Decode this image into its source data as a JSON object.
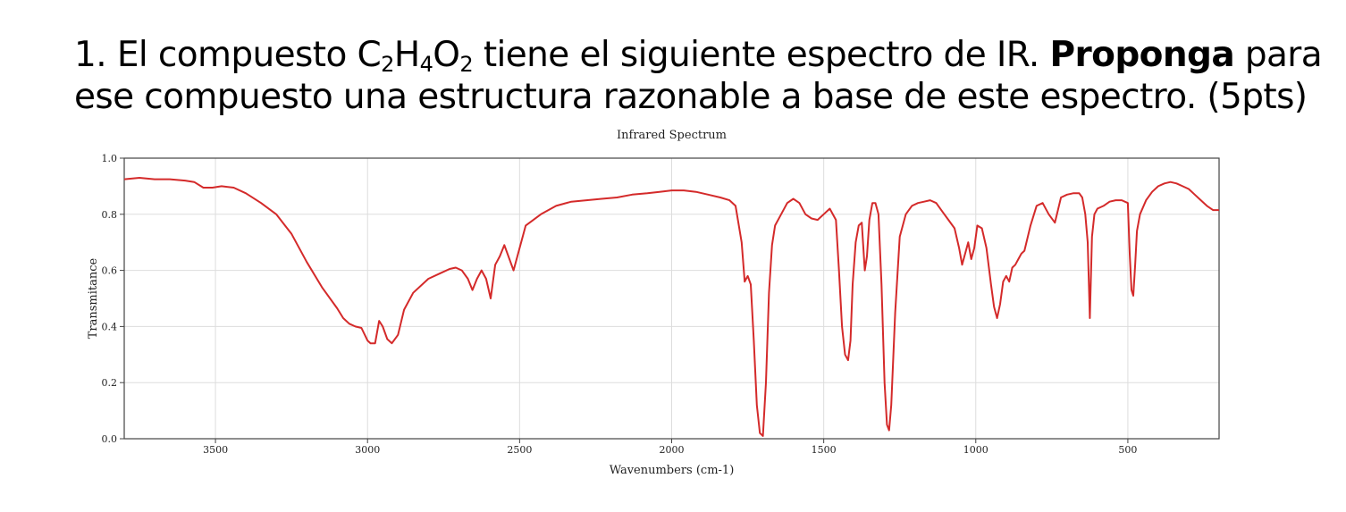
{
  "question": {
    "number": "1.",
    "line1_pre": " El compuesto C",
    "sub1": "2",
    "mid1": "H",
    "sub2": "4",
    "mid2": "O",
    "sub3": "2",
    "line1_post": " tiene el siguiente espectro de IR.  ",
    "bold": "Proponga",
    "line1_end": " para",
    "line2": "ese compuesto una estructura razonable a base de este espectro. (5pts)"
  },
  "chart_data": {
    "type": "line",
    "title": "Infrared Spectrum",
    "xlabel": "Wavenumbers (cm-1)",
    "ylabel": "Transmitance",
    "xlim": [
      3800,
      200
    ],
    "ylim": [
      0,
      1.0
    ],
    "x_reversed": true,
    "grid": true,
    "color": "#d42a2a",
    "xticks": [
      3500,
      3000,
      2500,
      2000,
      1500,
      1000,
      500
    ],
    "yticks": [
      0.0,
      0.2,
      0.4,
      0.6,
      0.8,
      1.0
    ],
    "ytick_labels": [
      "0.0",
      "0.2",
      "0.4",
      "0.6",
      "0.8",
      "1.0"
    ],
    "series": [
      {
        "x": [
          3800,
          3750,
          3700,
          3650,
          3600,
          3570,
          3540,
          3510,
          3480,
          3440,
          3400,
          3350,
          3300,
          3250,
          3200,
          3150,
          3100,
          3080,
          3060,
          3040,
          3020,
          3000,
          2990,
          2975,
          2962,
          2950,
          2935,
          2920,
          2900,
          2880,
          2850,
          2800,
          2760,
          2730,
          2710,
          2690,
          2670,
          2655,
          2640,
          2625,
          2610,
          2595,
          2580,
          2565,
          2550,
          2520,
          2480,
          2430,
          2380,
          2330,
          2280,
          2230,
          2180,
          2130,
          2080,
          2040,
          2000,
          1960,
          1920,
          1880,
          1840,
          1810,
          1790,
          1770,
          1760,
          1750,
          1740,
          1730,
          1720,
          1710,
          1700,
          1690,
          1680,
          1670,
          1660,
          1640,
          1620,
          1600,
          1580,
          1560,
          1540,
          1520,
          1500,
          1480,
          1460,
          1450,
          1440,
          1430,
          1420,
          1412,
          1405,
          1395,
          1385,
          1375,
          1365,
          1358,
          1350,
          1340,
          1330,
          1320,
          1310,
          1300,
          1292,
          1285,
          1278,
          1265,
          1250,
          1230,
          1210,
          1190,
          1170,
          1150,
          1130,
          1110,
          1090,
          1070,
          1055,
          1045,
          1035,
          1025,
          1015,
          1005,
          995,
          980,
          965,
          950,
          940,
          930,
          920,
          910,
          900,
          890,
          880,
          870,
          860,
          850,
          840,
          820,
          800,
          780,
          760,
          740,
          720,
          700,
          680,
          660,
          650,
          640,
          632,
          625,
          618,
          610,
          600,
          580,
          560,
          540,
          520,
          500,
          494,
          488,
          482,
          476,
          470,
          460,
          440,
          420,
          400,
          380,
          360,
          340,
          320,
          300,
          280,
          260,
          240,
          220,
          200
        ],
        "y": [
          0.925,
          0.93,
          0.925,
          0.925,
          0.92,
          0.915,
          0.895,
          0.895,
          0.9,
          0.895,
          0.875,
          0.84,
          0.8,
          0.73,
          0.63,
          0.54,
          0.465,
          0.43,
          0.41,
          0.4,
          0.395,
          0.35,
          0.34,
          0.34,
          0.42,
          0.4,
          0.355,
          0.34,
          0.37,
          0.46,
          0.52,
          0.57,
          0.59,
          0.605,
          0.61,
          0.6,
          0.57,
          0.53,
          0.57,
          0.6,
          0.57,
          0.5,
          0.62,
          0.65,
          0.69,
          0.6,
          0.76,
          0.8,
          0.83,
          0.845,
          0.85,
          0.855,
          0.86,
          0.87,
          0.875,
          0.88,
          0.885,
          0.885,
          0.88,
          0.87,
          0.86,
          0.85,
          0.83,
          0.7,
          0.56,
          0.58,
          0.55,
          0.35,
          0.12,
          0.02,
          0.01,
          0.2,
          0.52,
          0.69,
          0.76,
          0.8,
          0.84,
          0.855,
          0.84,
          0.8,
          0.785,
          0.78,
          0.8,
          0.82,
          0.78,
          0.6,
          0.4,
          0.3,
          0.28,
          0.35,
          0.55,
          0.7,
          0.76,
          0.77,
          0.6,
          0.65,
          0.78,
          0.84,
          0.84,
          0.8,
          0.55,
          0.2,
          0.05,
          0.03,
          0.12,
          0.45,
          0.72,
          0.8,
          0.83,
          0.84,
          0.845,
          0.85,
          0.84,
          0.81,
          0.78,
          0.75,
          0.68,
          0.62,
          0.66,
          0.7,
          0.64,
          0.68,
          0.76,
          0.75,
          0.68,
          0.55,
          0.47,
          0.43,
          0.48,
          0.56,
          0.58,
          0.56,
          0.61,
          0.62,
          0.64,
          0.66,
          0.67,
          0.76,
          0.83,
          0.84,
          0.8,
          0.77,
          0.86,
          0.87,
          0.875,
          0.875,
          0.86,
          0.8,
          0.7,
          0.43,
          0.72,
          0.8,
          0.82,
          0.83,
          0.845,
          0.85,
          0.85,
          0.84,
          0.66,
          0.53,
          0.51,
          0.62,
          0.74,
          0.8,
          0.85,
          0.88,
          0.9,
          0.91,
          0.915,
          0.91,
          0.9,
          0.89,
          0.87,
          0.85,
          0.83,
          0.815,
          0.815
        ]
      }
    ]
  }
}
